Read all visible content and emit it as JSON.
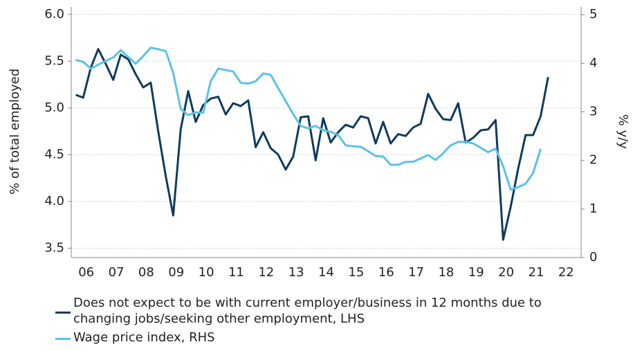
{
  "chart_data": {
    "type": "line",
    "y_label": "% of total employed",
    "y2_label": "% y/y",
    "xlim": [
      2006,
      2023
    ],
    "xticks": [
      {
        "value": 2006.5,
        "label": "06"
      },
      {
        "value": 2007.5,
        "label": "07"
      },
      {
        "value": 2008.5,
        "label": "08"
      },
      {
        "value": 2009.5,
        "label": "09"
      },
      {
        "value": 2010.5,
        "label": "10"
      },
      {
        "value": 2011.5,
        "label": "11"
      },
      {
        "value": 2012.5,
        "label": "12"
      },
      {
        "value": 2013.5,
        "label": "13"
      },
      {
        "value": 2014.5,
        "label": "14"
      },
      {
        "value": 2015.5,
        "label": "15"
      },
      {
        "value": 2016.5,
        "label": "16"
      },
      {
        "value": 2017.5,
        "label": "17"
      },
      {
        "value": 2018.5,
        "label": "18"
      },
      {
        "value": 2019.5,
        "label": "19"
      },
      {
        "value": 2020.5,
        "label": "20"
      },
      {
        "value": 2021.5,
        "label": "21"
      },
      {
        "value": 2022.5,
        "label": "22"
      }
    ],
    "ylim": [
      3.4,
      6.08
    ],
    "yticks": [
      {
        "value": 3.5,
        "label": "3.5"
      },
      {
        "value": 4,
        "label": "4.0"
      },
      {
        "value": 4.5,
        "label": "4.5"
      },
      {
        "value": 5,
        "label": "5.0"
      },
      {
        "value": 5.5,
        "label": "5.5"
      },
      {
        "value": 6,
        "label": "6.0"
      }
    ],
    "y2lim": [
      0,
      5.16
    ],
    "y2ticks": [
      0,
      1,
      2,
      3,
      4,
      5
    ],
    "grid": true,
    "x": [
      2006.15,
      2006.4,
      2006.65,
      2006.9,
      2007.15,
      2007.4,
      2007.65,
      2007.9,
      2008.15,
      2008.4,
      2008.65,
      2008.9,
      2009.15,
      2009.4,
      2009.65,
      2009.9,
      2010.15,
      2010.4,
      2010.65,
      2010.9,
      2011.15,
      2011.4,
      2011.65,
      2011.9,
      2012.15,
      2012.4,
      2012.65,
      2012.9,
      2013.15,
      2013.4,
      2013.65,
      2013.9,
      2014.15,
      2014.4,
      2014.65,
      2014.9,
      2015.15,
      2015.4,
      2015.65,
      2015.9,
      2016.15,
      2016.4,
      2016.65,
      2016.9,
      2017.15,
      2017.4,
      2017.65,
      2017.9,
      2018.15,
      2018.4,
      2018.65,
      2018.9,
      2019.15,
      2019.4,
      2019.65,
      2019.9,
      2020.15,
      2020.4,
      2020.65,
      2020.9,
      2021.15,
      2021.4,
      2021.65,
      2021.9
    ],
    "series": [
      {
        "name": "Does not expect to be with current employer/business in 12 months due to changing jobs/seeking other employment, LHS",
        "color": "#0d3b5e",
        "axis": "y",
        "values": [
          5.14,
          5.11,
          5.43,
          5.63,
          5.47,
          5.3,
          5.57,
          5.52,
          5.36,
          5.22,
          5.27,
          4.75,
          4.27,
          3.85,
          4.77,
          5.18,
          4.85,
          5.03,
          5.1,
          5.12,
          4.93,
          5.05,
          5.02,
          5.08,
          4.58,
          4.74,
          4.57,
          4.5,
          4.34,
          4.48,
          4.9,
          4.91,
          4.44,
          4.89,
          4.63,
          4.74,
          4.82,
          4.79,
          4.91,
          4.89,
          4.62,
          4.85,
          4.62,
          4.72,
          4.7,
          4.79,
          4.83,
          5.15,
          4.99,
          4.88,
          4.87,
          5.05,
          4.63,
          4.68,
          4.76,
          4.77,
          4.87,
          3.59,
          3.94,
          4.35,
          4.71,
          4.71,
          4.91,
          5.33
        ]
      },
      {
        "name": "Wage price index, RHS",
        "color": "#5bc2e7",
        "axis": "y2",
        "values": [
          4.07,
          4.03,
          3.89,
          3.97,
          4.05,
          4.12,
          4.27,
          4.13,
          3.99,
          4.15,
          4.32,
          4.29,
          4.25,
          3.8,
          3.06,
          2.93,
          2.99,
          2.98,
          3.63,
          3.89,
          3.86,
          3.83,
          3.6,
          3.58,
          3.63,
          3.79,
          3.76,
          3.49,
          3.22,
          2.95,
          2.71,
          2.66,
          2.71,
          2.62,
          2.59,
          2.52,
          2.31,
          2.29,
          2.28,
          2.19,
          2.09,
          2.08,
          1.91,
          1.91,
          1.97,
          1.97,
          2.04,
          2.11,
          2.01,
          2.15,
          2.31,
          2.38,
          2.38,
          2.35,
          2.26,
          2.17,
          2.24,
          1.88,
          1.4,
          1.45,
          1.52,
          1.74,
          2.24,
          null
        ]
      }
    ]
  }
}
